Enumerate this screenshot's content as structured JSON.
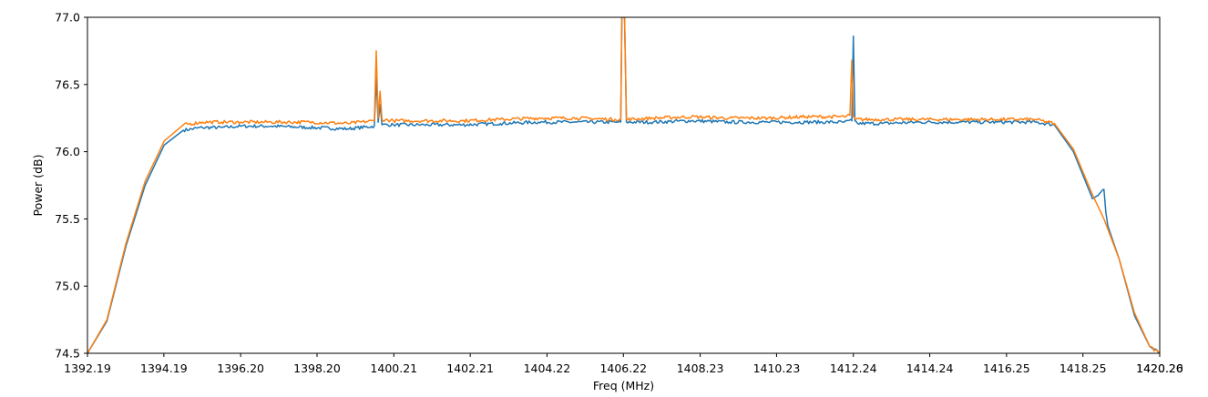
{
  "chart_data": {
    "type": "line",
    "title": "",
    "xlabel": "Freq (MHz)",
    "ylabel": "Power (dB)",
    "xlim": [
      1392.19,
      1420.26
    ],
    "ylim": [
      74.5,
      77.0
    ],
    "grid": false,
    "legend": "none",
    "x_ticks": [
      1392.19,
      1394.19,
      1396.2,
      1398.2,
      1400.21,
      1402.21,
      1404.22,
      1406.22,
      1408.23,
      1410.23,
      1412.24,
      1414.24,
      1416.25,
      1418.25,
      1420.26
    ],
    "x_tick_labels": [
      "1392.19",
      "1394.19",
      "1396.20",
      "1398.20",
      "1400.21",
      "1402.21",
      "1404.22",
      "1406.22",
      "1408.23",
      "1410.23",
      "1412.24",
      "1414.24",
      "1416.25",
      "1418.25",
      "1420.26"
    ],
    "x_tick_label_overlap": "1420.20",
    "y_ticks": [
      74.5,
      75.0,
      75.5,
      76.0,
      76.5,
      77.0
    ],
    "y_tick_labels": [
      "74.5",
      "75.0",
      "75.5",
      "76.0",
      "76.5",
      "77.0"
    ],
    "series": [
      {
        "color": "#1f77b4",
        "x": [
          1392.19,
          1392.7,
          1393.2,
          1393.7,
          1394.2,
          1394.7,
          1395.2,
          1395.7,
          1396.2,
          1397.0,
          1398.0,
          1399.0,
          1399.7,
          1399.75,
          1399.8,
          1399.85,
          1399.9,
          1400.2,
          1401.0,
          1402.0,
          1403.0,
          1404.0,
          1405.0,
          1406.0,
          1406.15,
          1406.18,
          1406.22,
          1406.25,
          1406.3,
          1407.0,
          1408.0,
          1409.0,
          1410.0,
          1411.0,
          1412.0,
          1412.2,
          1412.24,
          1412.28,
          1412.35,
          1413.0,
          1414.0,
          1415.0,
          1416.0,
          1417.0,
          1417.5,
          1418.0,
          1418.5,
          1418.8,
          1418.85,
          1418.9,
          1419.2,
          1419.6,
          1420.0,
          1420.26
        ],
        "values": [
          74.5,
          74.74,
          75.3,
          75.75,
          76.05,
          76.16,
          76.18,
          76.18,
          76.19,
          76.19,
          76.18,
          76.17,
          76.19,
          76.55,
          76.22,
          76.35,
          76.2,
          76.2,
          76.2,
          76.2,
          76.21,
          76.22,
          76.22,
          76.22,
          76.22,
          77.0,
          77.0,
          77.0,
          76.22,
          76.22,
          76.23,
          76.22,
          76.22,
          76.22,
          76.22,
          76.23,
          76.86,
          76.23,
          76.21,
          76.21,
          76.22,
          76.22,
          76.22,
          76.22,
          76.2,
          76.0,
          75.65,
          75.72,
          75.55,
          75.45,
          75.2,
          74.78,
          74.55,
          74.5
        ]
      },
      {
        "color": "#ff7f0e",
        "x": [
          1392.19,
          1392.7,
          1393.2,
          1393.7,
          1394.2,
          1394.7,
          1395.2,
          1395.7,
          1396.2,
          1397.0,
          1398.0,
          1399.0,
          1399.7,
          1399.75,
          1399.8,
          1399.85,
          1399.9,
          1400.2,
          1401.0,
          1402.0,
          1403.0,
          1404.0,
          1405.0,
          1406.0,
          1406.15,
          1406.18,
          1406.22,
          1406.25,
          1406.3,
          1407.0,
          1408.0,
          1409.0,
          1410.0,
          1411.0,
          1412.0,
          1412.15,
          1412.2,
          1412.24,
          1412.3,
          1413.0,
          1414.0,
          1415.0,
          1416.0,
          1417.0,
          1417.5,
          1418.0,
          1418.5,
          1418.8,
          1419.2,
          1419.6,
          1420.0,
          1420.26
        ],
        "values": [
          74.5,
          74.75,
          75.32,
          75.78,
          76.08,
          76.2,
          76.22,
          76.22,
          76.22,
          76.22,
          76.22,
          76.21,
          76.23,
          76.75,
          76.25,
          76.45,
          76.24,
          76.23,
          76.23,
          76.23,
          76.24,
          76.25,
          76.25,
          76.24,
          76.24,
          77.0,
          77.0,
          77.0,
          76.24,
          76.25,
          76.26,
          76.25,
          76.25,
          76.26,
          76.26,
          76.27,
          76.68,
          76.26,
          76.24,
          76.24,
          76.24,
          76.24,
          76.24,
          76.24,
          76.21,
          76.02,
          75.68,
          75.5,
          75.2,
          74.8,
          74.55,
          74.5
        ]
      }
    ]
  }
}
